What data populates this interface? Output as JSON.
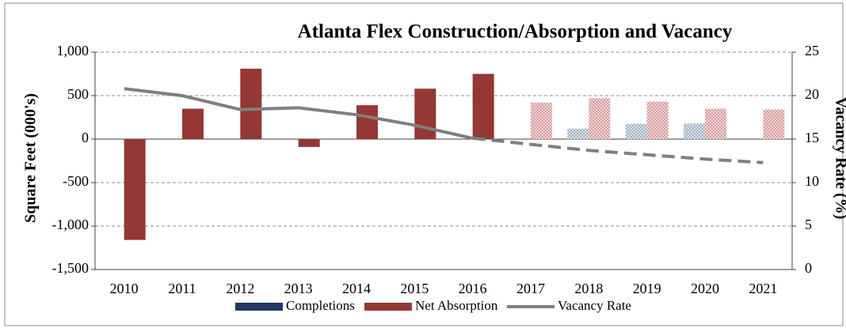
{
  "chart_data": {
    "type": "bar",
    "title": "Atlanta Flex Construction/Absorption and Vacancy",
    "y_label": "Square Feet (000's)",
    "y2_label": "Vacancy Rate (%)",
    "categories": [
      "2010",
      "2011",
      "2012",
      "2013",
      "2014",
      "2015",
      "2016",
      "2017",
      "2018",
      "2019",
      "2020",
      "2021"
    ],
    "forecast_from": "2017",
    "series": [
      {
        "name": "Completions",
        "type": "bar",
        "color": "#1f3864",
        "values": [
          0,
          0,
          0,
          0,
          0,
          0,
          0,
          0,
          120,
          175,
          180,
          0
        ]
      },
      {
        "name": "Net Absorption",
        "type": "bar",
        "color": "#953735",
        "values": [
          -1160,
          350,
          810,
          -90,
          390,
          580,
          750,
          420,
          470,
          430,
          350,
          340
        ]
      },
      {
        "name": "Vacancy Rate",
        "type": "line",
        "axis": "y2",
        "color": "#7f7f7f",
        "values": [
          20.8,
          20.0,
          18.4,
          18.6,
          17.8,
          16.6,
          15.1,
          14.4,
          13.7,
          13.2,
          12.7,
          12.3
        ]
      }
    ],
    "ylim": [
      -1500,
      1000
    ],
    "yticks": [
      {
        "value": -1500,
        "label": "-1,500"
      },
      {
        "value": -1000,
        "label": "-1,000"
      },
      -500,
      0,
      500,
      {
        "value": 1000,
        "label": "1,000"
      }
    ],
    "y2lim": [
      0,
      25
    ],
    "y2ticks": [
      0,
      5,
      10,
      15,
      20,
      25
    ],
    "grid": true,
    "legend": "bottom"
  }
}
